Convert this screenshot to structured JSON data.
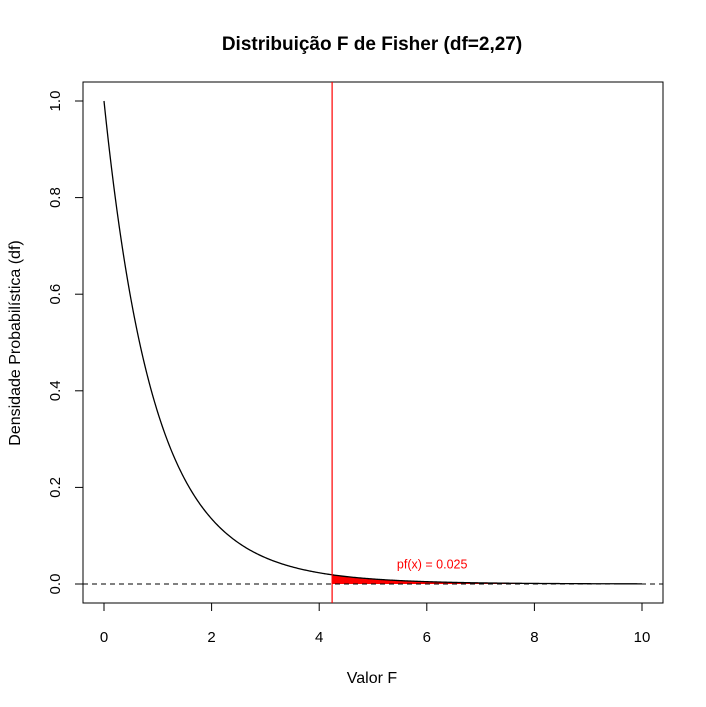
{
  "chart_data": {
    "type": "line",
    "title": "Distribuição F de Fisher (df=2,27)",
    "xlabel": "Valor F",
    "ylabel": "Densidade Probabilística (df)",
    "df1": 2,
    "df2": 27,
    "xlim": [
      0,
      10
    ],
    "ylim": [
      0,
      1
    ],
    "x_ticks": [
      0,
      2,
      4,
      6,
      8,
      10
    ],
    "y_ticks": [
      0.0,
      0.2,
      0.4,
      0.6,
      0.8,
      1.0
    ],
    "y_tick_labels": [
      "0.0",
      "0.2",
      "0.4",
      "0.6",
      "0.8",
      "1.0"
    ],
    "critical_value": 4.24,
    "shaded_tail_from": 4.24,
    "shaded_tail_to": 10,
    "annotation": "pf(x) = 0.025",
    "annotation_position": [
      6.1,
      0.04
    ],
    "baseline_y": 0,
    "grid": false,
    "colors": {
      "curve": "#000000",
      "critical_line": "#ff0000",
      "shade": "#ff0000",
      "annotation": "#ff0000",
      "baseline": "#000000"
    }
  }
}
